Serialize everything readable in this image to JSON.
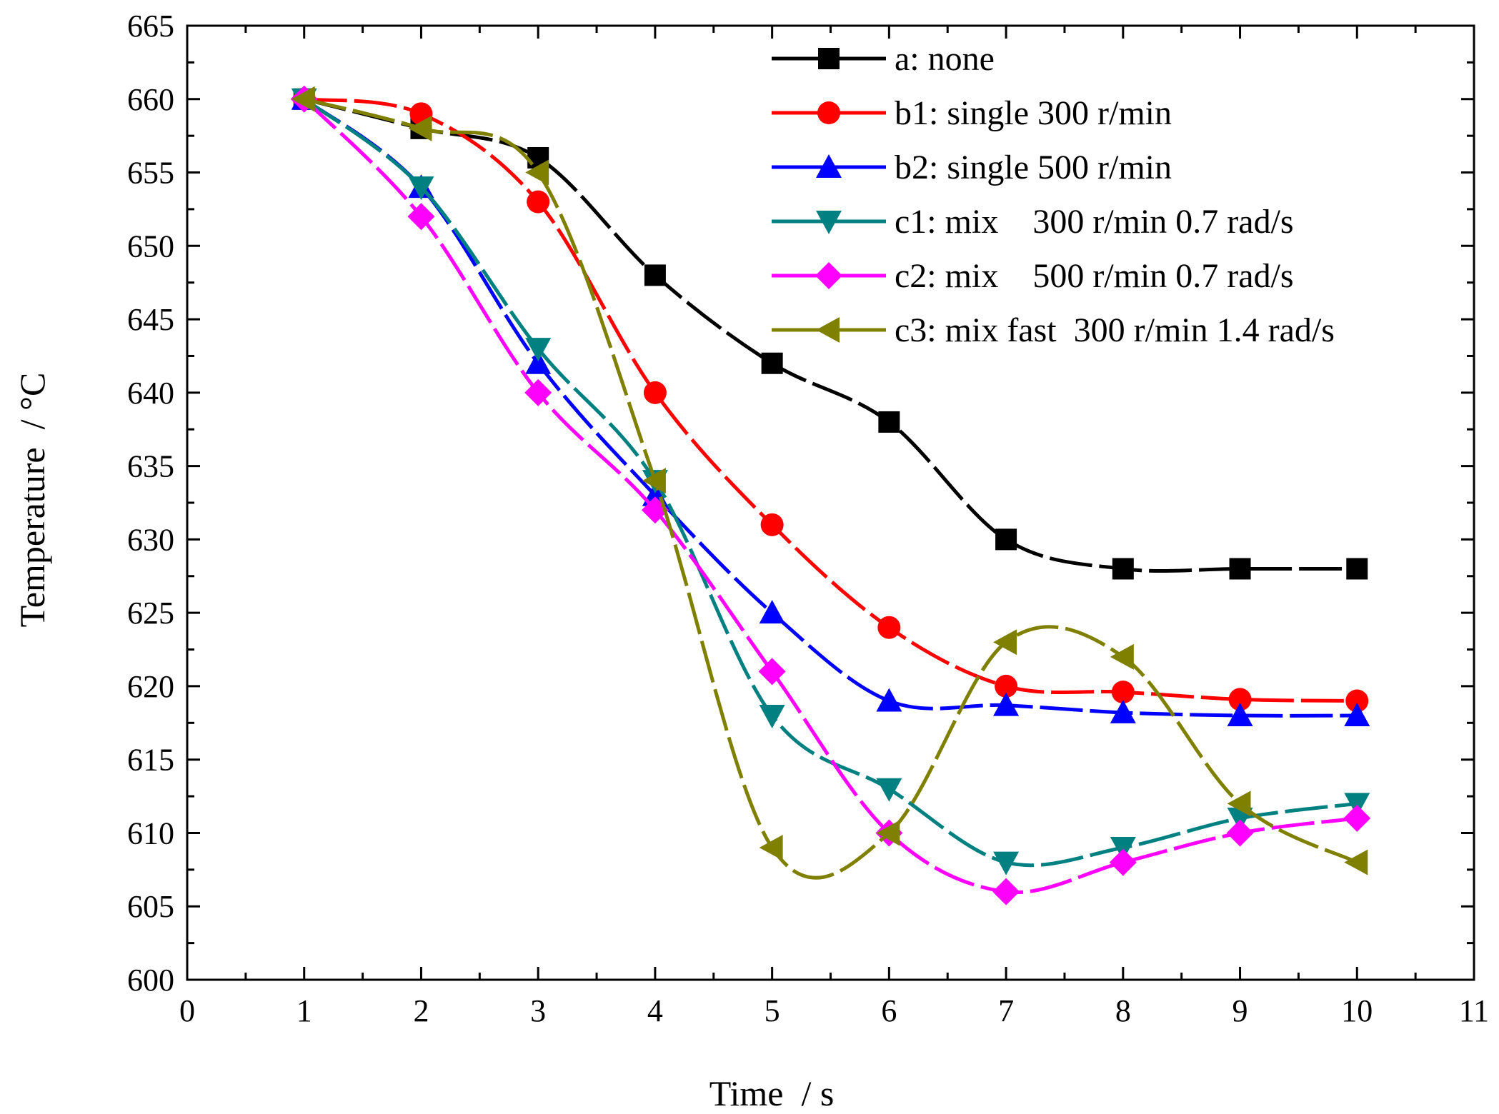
{
  "chart_data": {
    "type": "line",
    "title": "",
    "xlabel": "Time  / s",
    "ylabel": "Temperature  / °C",
    "xlim": [
      0,
      11
    ],
    "ylim": [
      600,
      665
    ],
    "x_ticks": [
      0,
      1,
      2,
      3,
      4,
      5,
      6,
      7,
      8,
      9,
      10,
      11
    ],
    "y_ticks": [
      600,
      605,
      610,
      615,
      620,
      625,
      630,
      635,
      640,
      645,
      650,
      655,
      660,
      665
    ],
    "grid": false,
    "legend_position": "top-right",
    "x": [
      1,
      2,
      3,
      4,
      5,
      6,
      7,
      8,
      9,
      10
    ],
    "series": [
      {
        "name": "a:none",
        "label": "a: none",
        "color": "#000000",
        "marker": "square",
        "values": [
          660,
          658,
          656,
          648,
          642,
          638,
          630,
          628,
          628,
          628
        ]
      },
      {
        "name": "b1",
        "label": "b1: single 300 r/min",
        "color": "#ff0000",
        "marker": "circle",
        "values": [
          660,
          659,
          653,
          640,
          631,
          624,
          620,
          619.6,
          619.1,
          619
        ]
      },
      {
        "name": "b2",
        "label": "b2: single 500 r/min",
        "color": "#0000ff",
        "marker": "triangle-up",
        "values": [
          660,
          654,
          642,
          633,
          625,
          619,
          618.7,
          618.2,
          618,
          618
        ]
      },
      {
        "name": "c1",
        "label": "c1: mix    300 r/min 0.7 rad/s",
        "color": "#008080",
        "marker": "triangle-down",
        "values": [
          660,
          654,
          643,
          634,
          618,
          613,
          608,
          609,
          611,
          612
        ]
      },
      {
        "name": "c2",
        "label": "c2: mix    500 r/min 0.7 rad/s",
        "color": "#ff00ff",
        "marker": "diamond",
        "values": [
          660,
          652,
          640,
          632,
          621,
          610,
          606,
          608,
          610,
          611
        ]
      },
      {
        "name": "c3",
        "label": "c3: mix fast  300 r/min 1.4 rad/s",
        "color": "#808000",
        "marker": "triangle-left",
        "values": [
          660,
          658,
          655,
          634,
          609,
          610,
          623,
          622,
          612,
          608
        ]
      }
    ]
  }
}
